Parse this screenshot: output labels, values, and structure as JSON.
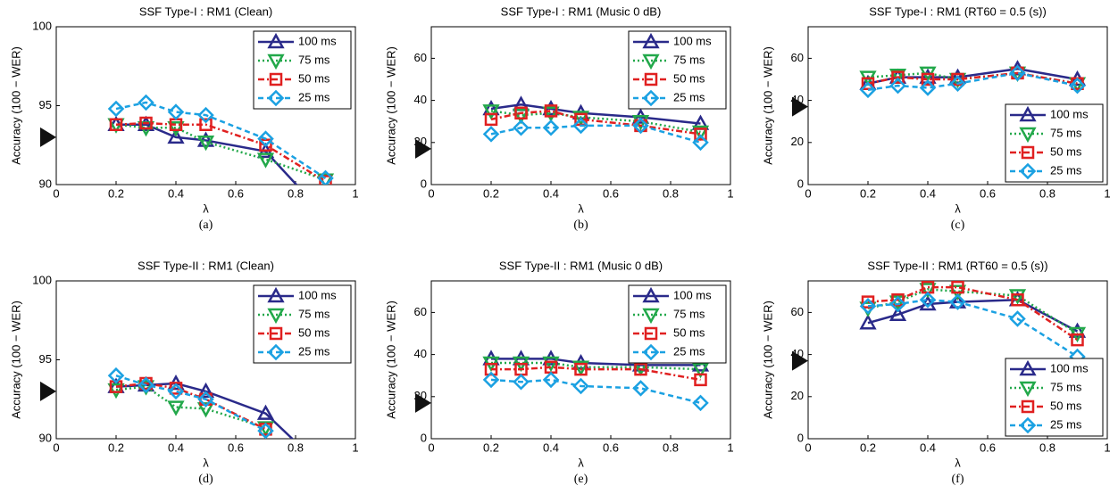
{
  "chart_data": [
    {
      "type": "line",
      "title": "SSF Type-I : RM1 (Clean)",
      "caption": "(a)",
      "xlabel": "λ",
      "ylabel": "Accuracy (100 − WER)",
      "x": [
        0.2,
        0.3,
        0.4,
        0.5,
        0.7,
        0.9
      ],
      "xlim": [
        0,
        1
      ],
      "xticks": [
        0,
        0.2,
        0.4,
        0.6,
        0.8,
        1
      ],
      "ylim": [
        90,
        100
      ],
      "yticks": [
        90,
        95,
        100
      ],
      "baseline": 93,
      "legend": "upper right",
      "series": [
        {
          "name": "100 ms",
          "color": "#2a2a8a",
          "values": [
            93.8,
            93.8,
            93.0,
            92.8,
            92.1,
            88.0
          ]
        },
        {
          "name": "75 ms",
          "color": "#22a84a",
          "values": [
            93.8,
            93.6,
            93.6,
            92.7,
            91.6,
            90.3
          ]
        },
        {
          "name": "50 ms",
          "color": "#e02020",
          "values": [
            93.8,
            93.9,
            93.8,
            93.8,
            92.5,
            90.2
          ]
        },
        {
          "name": "25 ms",
          "color": "#1ba1e2",
          "values": [
            94.8,
            95.2,
            94.6,
            94.4,
            92.9,
            90.4
          ]
        }
      ]
    },
    {
      "type": "line",
      "title": "SSF Type-I : RM1 (Music 0 dB)",
      "caption": "(b)",
      "xlabel": "λ",
      "ylabel": "Accuracy (100 − WER)",
      "x": [
        0.2,
        0.3,
        0.4,
        0.5,
        0.7,
        0.9
      ],
      "xlim": [
        0,
        1
      ],
      "xticks": [
        0,
        0.2,
        0.4,
        0.6,
        0.8,
        1
      ],
      "ylim": [
        0,
        75
      ],
      "yticks": [
        0,
        20,
        40,
        60
      ],
      "baseline": 17,
      "legend": "upper right",
      "series": [
        {
          "name": "100 ms",
          "color": "#2a2a8a",
          "values": [
            36,
            38,
            36,
            34,
            32,
            29
          ]
        },
        {
          "name": "75 ms",
          "color": "#22a84a",
          "values": [
            35,
            33,
            34,
            32,
            30,
            25
          ]
        },
        {
          "name": "50 ms",
          "color": "#e02020",
          "values": [
            31,
            34,
            35,
            31,
            28,
            24
          ]
        },
        {
          "name": "25 ms",
          "color": "#1ba1e2",
          "values": [
            24,
            27,
            27,
            28,
            28,
            20
          ]
        }
      ]
    },
    {
      "type": "line",
      "title": "SSF Type-I : RM1 (RT60 = 0.5 (s))",
      "caption": "(c)",
      "xlabel": "λ",
      "ylabel": "Accuracy (100 − WER)",
      "x": [
        0.2,
        0.3,
        0.4,
        0.5,
        0.7,
        0.9
      ],
      "xlim": [
        0,
        1
      ],
      "xticks": [
        0,
        0.2,
        0.4,
        0.6,
        0.8,
        1
      ],
      "ylim": [
        0,
        75
      ],
      "yticks": [
        0,
        20,
        40,
        60
      ],
      "baseline": 37,
      "legend": "lower right",
      "series": [
        {
          "name": "100 ms",
          "color": "#2a2a8a",
          "values": [
            48,
            51,
            51,
            51,
            55,
            50
          ]
        },
        {
          "name": "75 ms",
          "color": "#22a84a",
          "values": [
            51,
            52,
            53,
            50,
            53,
            48
          ]
        },
        {
          "name": "50 ms",
          "color": "#e02020",
          "values": [
            48,
            51,
            50,
            50,
            53,
            48
          ]
        },
        {
          "name": "25 ms",
          "color": "#1ba1e2",
          "values": [
            45,
            47,
            46,
            48,
            53,
            47
          ]
        }
      ]
    },
    {
      "type": "line",
      "title": "SSF Type-II : RM1 (Clean)",
      "caption": "(d)",
      "xlabel": "λ",
      "ylabel": "Accuracy (100 − WER)",
      "x": [
        0.2,
        0.3,
        0.4,
        0.5,
        0.7,
        0.9
      ],
      "xlim": [
        0,
        1
      ],
      "xticks": [
        0,
        0.2,
        0.4,
        0.6,
        0.8,
        1
      ],
      "ylim": [
        90,
        100
      ],
      "yticks": [
        90,
        95,
        100
      ],
      "baseline": 93,
      "legend": "upper right",
      "series": [
        {
          "name": "100 ms",
          "color": "#2a2a8a",
          "values": [
            93.3,
            93.4,
            93.5,
            93.0,
            91.6,
            88.0
          ]
        },
        {
          "name": "75 ms",
          "color": "#22a84a",
          "values": [
            93.1,
            93.3,
            92.0,
            91.9,
            90.7,
            null
          ]
        },
        {
          "name": "50 ms",
          "color": "#e02020",
          "values": [
            93.3,
            93.5,
            93.2,
            92.5,
            90.6,
            null
          ]
        },
        {
          "name": "25 ms",
          "color": "#1ba1e2",
          "values": [
            94.0,
            93.4,
            93.0,
            92.5,
            90.5,
            null
          ]
        }
      ]
    },
    {
      "type": "line",
      "title": "SSF Type-II : RM1 (Music 0 dB)",
      "caption": "(e)",
      "xlabel": "λ",
      "ylabel": "Accuracy (100 − WER)",
      "x": [
        0.2,
        0.3,
        0.4,
        0.5,
        0.7,
        0.9
      ],
      "xlim": [
        0,
        1
      ],
      "xticks": [
        0,
        0.2,
        0.4,
        0.6,
        0.8,
        1
      ],
      "ylim": [
        0,
        75
      ],
      "yticks": [
        0,
        20,
        40,
        60
      ],
      "baseline": 17,
      "legend": "upper right",
      "series": [
        {
          "name": "100 ms",
          "color": "#2a2a8a",
          "values": [
            38,
            38,
            38,
            36,
            35,
            35
          ]
        },
        {
          "name": "75 ms",
          "color": "#22a84a",
          "values": [
            36,
            36,
            36,
            34,
            34,
            33
          ]
        },
        {
          "name": "50 ms",
          "color": "#e02020",
          "values": [
            33,
            33,
            34,
            33,
            33,
            28
          ]
        },
        {
          "name": "25 ms",
          "color": "#1ba1e2",
          "values": [
            28,
            27,
            28,
            25,
            24,
            17
          ]
        }
      ]
    },
    {
      "type": "line",
      "title": "SSF Type-II : RM1 (RT60 = 0.5 (s))",
      "caption": "(f)",
      "xlabel": "λ",
      "ylabel": "Accuracy (100 − WER)",
      "x": [
        0.2,
        0.3,
        0.4,
        0.5,
        0.7,
        0.9
      ],
      "xlim": [
        0,
        1
      ],
      "xticks": [
        0,
        0.2,
        0.4,
        0.6,
        0.8,
        1
      ],
      "ylim": [
        0,
        75
      ],
      "yticks": [
        0,
        20,
        40,
        60
      ],
      "baseline": 37,
      "legend": "lower right",
      "series": [
        {
          "name": "100 ms",
          "color": "#2a2a8a",
          "values": [
            55,
            59,
            64,
            65,
            66,
            51
          ]
        },
        {
          "name": "75 ms",
          "color": "#22a84a",
          "values": [
            62,
            65,
            71,
            70,
            68,
            50
          ]
        },
        {
          "name": "50 ms",
          "color": "#e02020",
          "values": [
            65,
            66,
            72,
            72,
            66,
            47
          ]
        },
        {
          "name": "25 ms",
          "color": "#1ba1e2",
          "values": [
            63,
            64,
            66,
            65,
            57,
            39
          ]
        }
      ]
    }
  ]
}
